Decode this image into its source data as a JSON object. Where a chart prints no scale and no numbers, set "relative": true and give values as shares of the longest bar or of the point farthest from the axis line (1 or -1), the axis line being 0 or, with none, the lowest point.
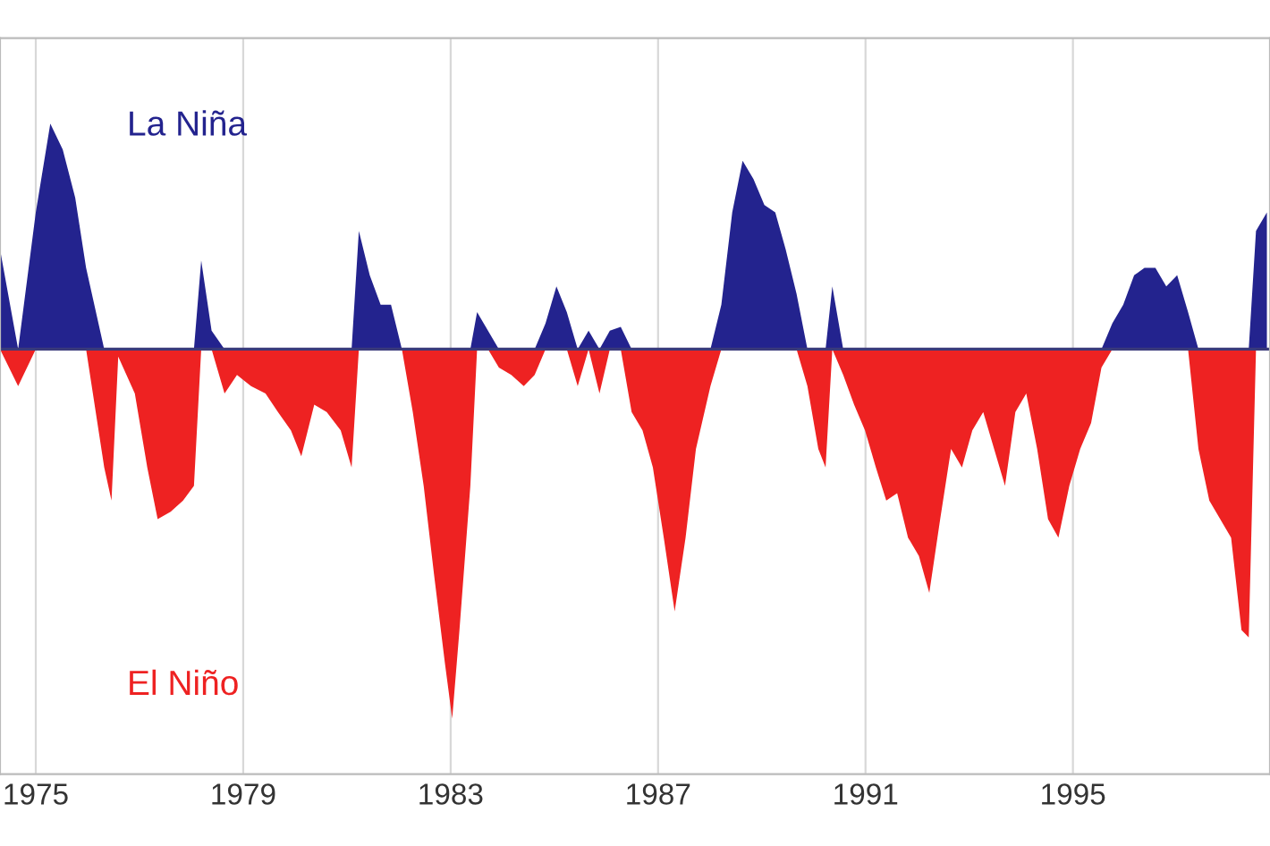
{
  "chart_data": {
    "type": "area",
    "relative": true,
    "grid": "x",
    "ref_lines": [
      {
        "axis": "y",
        "value": 0,
        "color": "#3a3a7a"
      }
    ],
    "xlim": [
      1974.31,
      1998.8
    ],
    "xticks": [
      1975,
      1979,
      1983,
      1987,
      1991,
      1995
    ],
    "x": [
      1974.31,
      1974.66,
      1975.0,
      1975.28,
      1975.52,
      1975.76,
      1975.97,
      1976.32,
      1976.46,
      1976.59,
      1976.91,
      1977.15,
      1977.35,
      1977.6,
      1977.84,
      1978.05,
      1978.19,
      1978.39,
      1978.64,
      1978.88,
      1979.15,
      1979.43,
      1979.67,
      1979.92,
      1980.12,
      1980.37,
      1980.61,
      1980.88,
      1981.09,
      1981.23,
      1981.44,
      1981.65,
      1981.85,
      1982.06,
      1982.27,
      1982.48,
      1982.68,
      1982.89,
      1983.03,
      1983.17,
      1983.38,
      1983.51,
      1983.72,
      1983.93,
      1984.17,
      1984.41,
      1984.62,
      1984.83,
      1985.04,
      1985.24,
      1985.45,
      1985.66,
      1985.87,
      1986.07,
      1986.28,
      1986.49,
      1986.7,
      1986.9,
      1987.11,
      1987.32,
      1987.53,
      1987.73,
      1988.01,
      1988.22,
      1988.43,
      1988.63,
      1988.84,
      1989.05,
      1989.26,
      1989.46,
      1989.67,
      1989.88,
      1990.09,
      1990.23,
      1990.36,
      1990.57,
      1990.78,
      1990.99,
      1991.2,
      1991.4,
      1991.61,
      1991.82,
      1992.03,
      1992.23,
      1992.44,
      1992.65,
      1992.86,
      1993.06,
      1993.27,
      1993.48,
      1993.69,
      1993.89,
      1994.1,
      1994.31,
      1994.52,
      1994.72,
      1994.93,
      1995.14,
      1995.35,
      1995.55,
      1995.76,
      1995.97,
      1996.18,
      1996.38,
      1996.59,
      1996.8,
      1997.01,
      1997.22,
      1997.42,
      1997.63,
      1997.84,
      1998.05,
      1998.25,
      1998.39,
      1998.53,
      1998.74
    ],
    "series": [
      {
        "name": "La Niña",
        "color": "#23238e",
        "values": [
          0.27,
          0,
          0.37,
          0.61,
          0.54,
          0.41,
          0.22,
          0,
          0,
          0,
          0,
          0,
          0,
          0,
          0,
          0,
          0.24,
          0.05,
          0,
          0,
          0,
          0,
          0,
          0,
          0,
          0,
          0,
          0,
          0,
          0.32,
          0.2,
          0.12,
          0.12,
          0,
          0,
          0,
          0,
          0,
          0,
          0,
          0,
          0.1,
          0.05,
          0,
          0,
          0,
          0,
          0.07,
          0.17,
          0.1,
          0,
          0.05,
          0,
          0.05,
          0.06,
          0,
          0,
          0,
          0,
          0,
          0,
          0,
          0,
          0.12,
          0.37,
          0.51,
          0.46,
          0.39,
          0.37,
          0.27,
          0.15,
          0,
          0,
          0,
          0.17,
          0,
          0,
          0,
          0,
          0,
          0,
          0,
          0,
          0,
          0,
          0,
          0,
          0,
          0,
          0,
          0,
          0,
          0,
          0,
          0,
          0,
          0,
          0,
          0,
          0,
          0.07,
          0.12,
          0.2,
          0.22,
          0.22,
          0.17,
          0.2,
          0.1,
          0,
          0,
          0,
          0,
          0,
          0,
          0.32,
          0.37
        ]
      },
      {
        "name": "El Niño",
        "color": "#ee2222",
        "values": [
          0,
          -0.1,
          0,
          0,
          0,
          0,
          0,
          -0.32,
          -0.41,
          -0.02,
          -0.12,
          -0.32,
          -0.46,
          -0.44,
          -0.41,
          -0.37,
          0,
          0,
          -0.12,
          -0.07,
          -0.1,
          -0.12,
          -0.17,
          -0.22,
          -0.29,
          -0.15,
          -0.17,
          -0.22,
          -0.32,
          0,
          0,
          0,
          0,
          0,
          -0.17,
          -0.37,
          -0.61,
          -0.85,
          -1,
          -0.76,
          -0.37,
          0,
          0,
          -0.05,
          -0.07,
          -0.1,
          -0.07,
          0,
          0,
          0,
          -0.1,
          0,
          -0.12,
          0,
          0,
          -0.17,
          -0.22,
          -0.32,
          -0.51,
          -0.71,
          -0.51,
          -0.27,
          -0.1,
          0,
          0,
          0,
          0,
          0,
          0,
          0,
          0,
          -0.1,
          -0.27,
          -0.32,
          0,
          -0.07,
          -0.15,
          -0.22,
          -0.32,
          -0.41,
          -0.39,
          -0.51,
          -0.56,
          -0.66,
          -0.46,
          -0.27,
          -0.32,
          -0.22,
          -0.17,
          -0.27,
          -0.37,
          -0.17,
          -0.12,
          -0.27,
          -0.46,
          -0.51,
          -0.37,
          -0.27,
          -0.2,
          -0.05,
          0,
          0,
          0,
          0,
          0,
          0,
          0,
          0,
          -0.27,
          -0.41,
          -0.46,
          -0.51,
          -0.76,
          -0.78,
          0,
          0
        ]
      }
    ]
  }
}
